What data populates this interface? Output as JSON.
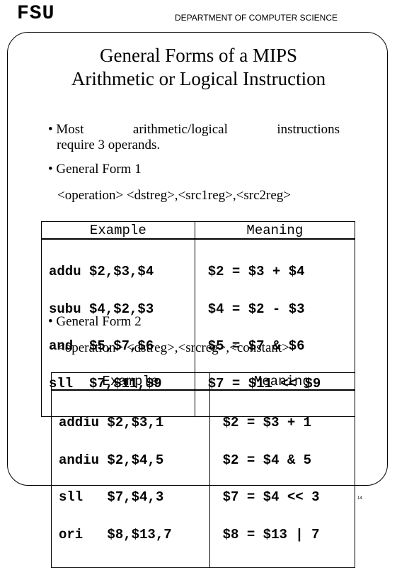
{
  "header": {
    "logo": "FSU",
    "department": "DEPARTMENT OF COMPUTER SCIENCE"
  },
  "slide": {
    "title_line1": "General Forms of a MIPS",
    "title_line2": "Arithmetic or Logical Instruction",
    "bullet1": {
      "word1": "• Most",
      "word2": "arithmetic/logical",
      "word3": "instructions",
      "line2": "require 3 operands."
    },
    "bullet2": "• General Form 1",
    "form1": "<operation>  <dstreg>,<src1reg>,<src2reg>",
    "table1": {
      "header_example": "Example",
      "header_meaning": "Meaning",
      "rows": [
        {
          "example": "addu $2,$3,$4",
          "meaning": "$2 = $3 + $4"
        },
        {
          "example": "subu $4,$2,$3",
          "meaning": "$4 = $2 - $3"
        },
        {
          "example": "and  $5,$7,$6",
          "meaning": "$5 = $7 & $6"
        },
        {
          "example": "sll  $7,$11,$9",
          "meaning": "$7 = $11 << $9"
        }
      ]
    },
    "bullet3": "• General Form 2",
    "form2": "<operation>  <dstreg>,<srcreg>,<constant>",
    "table2": {
      "header_example": "Example",
      "header_meaning": "Meaning",
      "rows": [
        {
          "example": "addiu $2,$3,1",
          "meaning": "$2 = $3 + 1"
        },
        {
          "example": "andiu $2,$4,5",
          "meaning": "$2 = $4 & 5"
        },
        {
          "example": "sll   $7,$4,3",
          "meaning": "$7 = $4 << 3"
        },
        {
          "example": "ori   $8,$13,7",
          "meaning": "$8 = $13 | 7"
        }
      ]
    },
    "page_number": "14"
  }
}
